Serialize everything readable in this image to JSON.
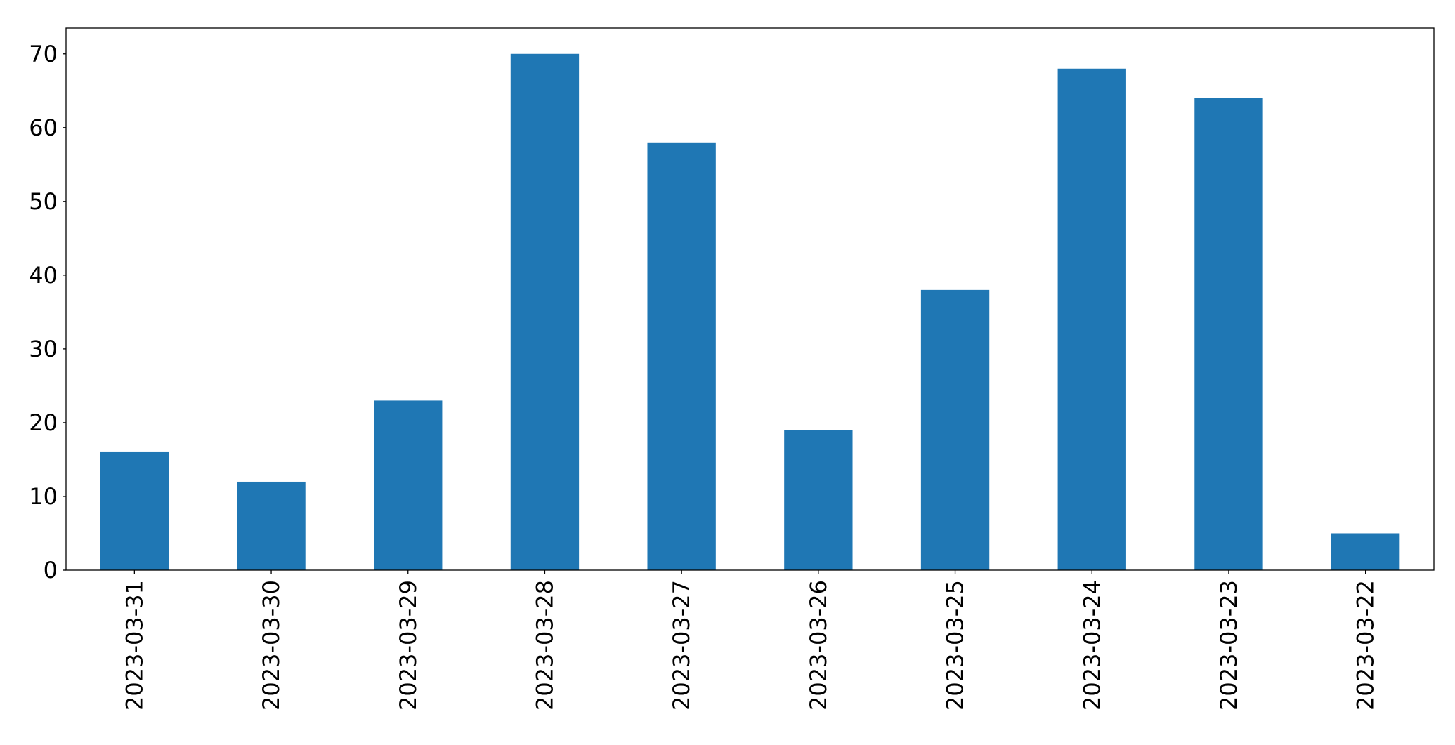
{
  "chart_data": {
    "type": "bar",
    "categories": [
      "2023-03-31",
      "2023-03-30",
      "2023-03-29",
      "2023-03-28",
      "2023-03-27",
      "2023-03-26",
      "2023-03-25",
      "2023-03-24",
      "2023-03-23",
      "2023-03-22"
    ],
    "values": [
      16,
      12,
      23,
      70,
      58,
      19,
      38,
      68,
      64,
      5
    ],
    "color": "#1f77b4",
    "ylim": [
      0,
      73.5
    ],
    "yticks": [
      0,
      10,
      20,
      30,
      40,
      50,
      60,
      70
    ],
    "grid": false
  }
}
